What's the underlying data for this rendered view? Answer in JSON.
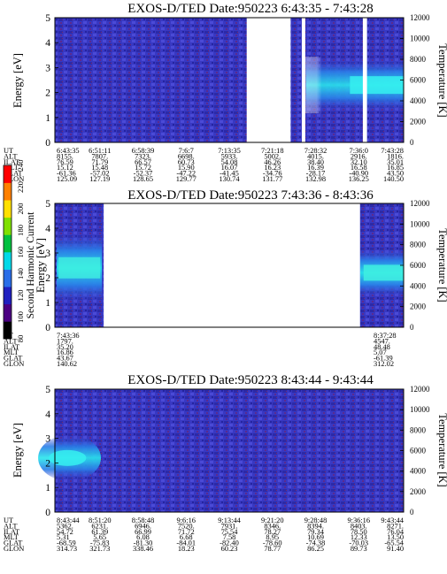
{
  "chart_data": [
    {
      "type": "heatmap",
      "title": "EXOS-D/TED   Date:950223  6:43:35 - 7:43:28",
      "ylabel": "Energy [eV]",
      "y2label": "Temperature [K]",
      "ylim": [
        0,
        5
      ],
      "y2lim": [
        0,
        12000
      ],
      "yticks": [
        "0",
        "1",
        "2",
        "3",
        "4",
        "5"
      ],
      "y2ticks": [
        "0",
        "2000",
        "4000",
        "6000",
        "8000",
        "10000",
        "12000"
      ],
      "data_gaps_fraction": [
        [
          0.55,
          0.676
        ],
        [
          0.708,
          0.718
        ],
        [
          0.883,
          0.895
        ]
      ],
      "band": {
        "present": true,
        "energy_center_eV": 2.3,
        "start_fraction": 0.72
      },
      "ephemeris": {
        "labels": [
          "UT",
          "ALT",
          "ILAT",
          "MLT",
          "GLAT",
          "GLON"
        ],
        "columns": [
          [
            "6:43:35",
            "8155.",
            "76.59",
            "15.12",
            "-61.36",
            "125.09"
          ],
          [
            "6:51:11",
            "7807.",
            "71.79",
            "15.48",
            "-57.02",
            "127.19"
          ],
          [
            "6:58:39",
            "7323.",
            "66.57",
            "15.72",
            "-52.37",
            "128.65"
          ],
          [
            "7:6:7",
            "6698.",
            "60.73",
            "15.90",
            "-47.22",
            "129.77"
          ],
          [
            "7:13:35",
            "5933.",
            "54.08",
            "16.07",
            "-41.45",
            "130.74"
          ],
          [
            "7:21:18",
            "5002.",
            "46.26",
            "16.23",
            "-34.76",
            "131.77"
          ],
          [
            "7:28:32",
            "4015.",
            "38.40",
            "16.39",
            "-28.17",
            "132.98"
          ],
          [
            "7:36:0",
            "2916.",
            "32.10",
            "16.58",
            "-40.90",
            "136.25"
          ],
          [
            "7:43:28",
            "1816.",
            "35.01",
            "16.85",
            "43.50",
            "140.50"
          ]
        ]
      }
    },
    {
      "type": "heatmap",
      "title": "EXOS-D/TED   Date:950223  7:43:36 - 8:43:36",
      "ylabel": "Energy [eV]",
      "y2label": "Temperature [K]",
      "ylim": [
        0,
        5
      ],
      "y2lim": [
        0,
        12000
      ],
      "yticks": [
        "0",
        "1",
        "2",
        "3",
        "4",
        "5"
      ],
      "y2ticks": [
        "0",
        "2000",
        "4000",
        "6000",
        "8000",
        "10000",
        "12000"
      ],
      "data_gaps_fraction": [
        [
          0.14,
          0.875
        ]
      ],
      "colorbar": {
        "label": "Second Harmonic Current",
        "ticks": [
          "80",
          "100",
          "120",
          "140",
          "160",
          "180",
          "200",
          "220",
          "240"
        ],
        "colors": [
          "#000000",
          "#4b0082",
          "#2020c0",
          "#2a6ee8",
          "#00d8e8",
          "#00c040",
          "#80e000",
          "#ffe000",
          "#ff8000",
          "#ff0000"
        ]
      },
      "ephemeris": {
        "labels": [
          "UT",
          "ALT",
          "ILAT",
          "MLT",
          "GLAT",
          "GLON"
        ],
        "columns": [
          [
            "7:43:36",
            "1797.",
            "35.20",
            "16.86",
            "43.67",
            "140.62"
          ],
          [
            "8:37:28",
            "4547.",
            "48.48",
            "5.07",
            "-61.39",
            "312.02"
          ]
        ]
      }
    },
    {
      "type": "heatmap",
      "title": "EXOS-D/TED   Date:950223  8:43:44 - 9:43:44",
      "ylabel": "Energy [eV]",
      "y2label": "Temperature [K]",
      "ylim": [
        0,
        5
      ],
      "y2lim": [
        0,
        12000
      ],
      "yticks": [
        "0",
        "1",
        "2",
        "3",
        "4",
        "5"
      ],
      "y2ticks": [
        "0",
        "2000",
        "4000",
        "6000",
        "8000",
        "10000",
        "12000"
      ],
      "data_gaps_fraction": [],
      "band": {
        "present": true,
        "energy_center_eV": 2.2,
        "end_fraction": 0.12
      },
      "ephemeris": {
        "labels": [
          "UT",
          "ALT",
          "ILAT",
          "MLT",
          "GLAT",
          "GLON"
        ],
        "columns": [
          [
            "8:43:44",
            "5362.",
            "54.72",
            "5.31",
            "-68.59",
            "314.73"
          ],
          [
            "8:51:20",
            "6231.",
            "61.39",
            "5.65",
            "-75.83",
            "321.73"
          ],
          [
            "8:58:48",
            "6946.",
            "66.99",
            "6.08",
            "-81.30",
            "338.46"
          ],
          [
            "9:6:16",
            "7520.",
            "71.72",
            "6.68",
            "-84.01",
            "18.23"
          ],
          [
            "9:13:44",
            "7931.",
            "75.54",
            "7.58",
            "-82.40",
            "60.23"
          ],
          [
            "9:21:20",
            "8346.",
            "78.27",
            "8.95",
            "-78.60",
            "78.77"
          ],
          [
            "9:28:48",
            "8394.",
            "79.34",
            "10.69",
            "-74.38",
            "86.25"
          ],
          [
            "9:36:16",
            "8403.",
            "78.50",
            "12.33",
            "-70.03",
            "89.73"
          ],
          [
            "9:43:44",
            "8271.",
            "76.04",
            "13.50",
            "-65.54",
            "91.40"
          ]
        ]
      }
    }
  ]
}
